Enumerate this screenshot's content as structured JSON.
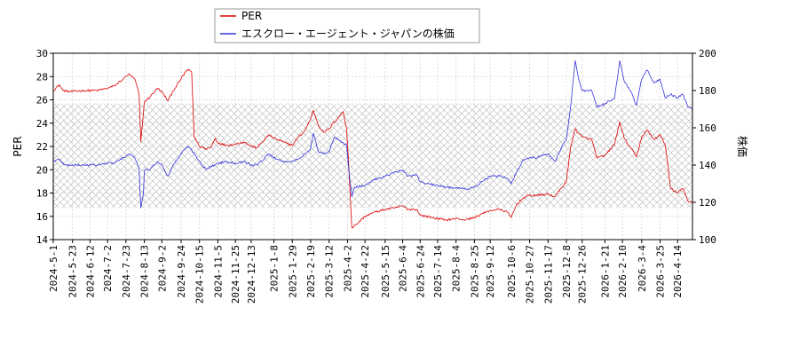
{
  "chart_data": {
    "type": "line",
    "title": "",
    "xlabel": "",
    "ylabel_left": "PER",
    "ylabel_right": "株価",
    "ylim_left": [
      14,
      30
    ],
    "ylim_right": [
      100,
      200
    ],
    "yticks_left": [
      14,
      16,
      18,
      20,
      22,
      24,
      26,
      28,
      30
    ],
    "yticks_right": [
      100,
      120,
      140,
      160,
      180,
      200
    ],
    "xlim": [
      "2024-05-01",
      "2026-05-01"
    ],
    "xtick_labels": [
      "2024-5-1",
      "2024-5-23",
      "2024-6-12",
      "2024-7-2",
      "2024-7-23",
      "2024-8-13",
      "2024-9-2",
      "2024-9-24",
      "2024-10-15",
      "2024-11-5",
      "2024-11-25",
      "2024-12-13",
      "2025-1-8",
      "2025-1-29",
      "2025-2-19",
      "2025-3-12",
      "2025-4-2",
      "2025-4-22",
      "2025-5-15",
      "2025-6-4",
      "2025-6-24",
      "2025-7-14",
      "2025-8-4",
      "2025-8-25",
      "2025-9-12",
      "2025-10-6",
      "2025-10-27",
      "2025-11-17",
      "2025-12-8",
      "2025-12-26",
      "2026-1-21",
      "2026-2-10",
      "2026-3-4",
      "2026-3-25",
      "2026-4-14"
    ],
    "xtick_dates": [
      "2024-05-01",
      "2024-05-23",
      "2024-06-12",
      "2024-07-02",
      "2024-07-23",
      "2024-08-13",
      "2024-09-02",
      "2024-09-24",
      "2024-10-15",
      "2024-11-05",
      "2024-11-25",
      "2024-12-13",
      "2025-01-08",
      "2025-01-29",
      "2025-02-19",
      "2025-03-12",
      "2025-04-02",
      "2025-04-22",
      "2025-05-15",
      "2025-06-04",
      "2025-06-24",
      "2025-07-14",
      "2025-08-04",
      "2025-08-25",
      "2025-09-12",
      "2025-10-06",
      "2025-10-27",
      "2025-11-17",
      "2025-12-08",
      "2025-12-26",
      "2026-01-21",
      "2026-02-10",
      "2026-03-04",
      "2026-03-25",
      "2026-04-14"
    ],
    "legend_position": "top-left",
    "shaded_band_right_axis": [
      117,
      173
    ],
    "series": [
      {
        "name": "PER",
        "axis": "left",
        "color": "#dd0000",
        "points": [
          [
            "2024-05-01",
            26.8
          ],
          [
            "2024-05-08",
            27.3
          ],
          [
            "2024-05-12",
            26.8
          ],
          [
            "2024-05-20",
            26.7
          ],
          [
            "2024-06-05",
            26.8
          ],
          [
            "2024-06-20",
            26.8
          ],
          [
            "2024-07-02",
            27.0
          ],
          [
            "2024-07-10",
            27.2
          ],
          [
            "2024-07-20",
            27.8
          ],
          [
            "2024-07-26",
            28.2
          ],
          [
            "2024-08-02",
            27.8
          ],
          [
            "2024-08-07",
            26.5
          ],
          [
            "2024-08-09",
            22.4
          ],
          [
            "2024-08-13",
            25.8
          ],
          [
            "2024-08-20",
            26.3
          ],
          [
            "2024-08-28",
            27.0
          ],
          [
            "2024-09-03",
            26.6
          ],
          [
            "2024-09-09",
            25.9
          ],
          [
            "2024-09-15",
            26.8
          ],
          [
            "2024-09-24",
            27.8
          ],
          [
            "2024-10-01",
            28.6
          ],
          [
            "2024-10-06",
            28.4
          ],
          [
            "2024-10-09",
            22.8
          ],
          [
            "2024-10-15",
            22.0
          ],
          [
            "2024-10-22",
            21.8
          ],
          [
            "2024-10-28",
            21.9
          ],
          [
            "2024-11-02",
            22.7
          ],
          [
            "2024-11-05",
            22.3
          ],
          [
            "2024-11-15",
            22.1
          ],
          [
            "2024-11-25",
            22.2
          ],
          [
            "2024-12-05",
            22.4
          ],
          [
            "2024-12-13",
            22.0
          ],
          [
            "2024-12-20",
            21.9
          ],
          [
            "2025-01-02",
            23.0
          ],
          [
            "2025-01-08",
            22.7
          ],
          [
            "2025-01-18",
            22.4
          ],
          [
            "2025-01-29",
            22.1
          ],
          [
            "2025-02-05",
            22.8
          ],
          [
            "2025-02-12",
            23.3
          ],
          [
            "2025-02-19",
            24.4
          ],
          [
            "2025-02-22",
            25.1
          ],
          [
            "2025-02-28",
            23.8
          ],
          [
            "2025-03-06",
            23.2
          ],
          [
            "2025-03-12",
            23.5
          ],
          [
            "2025-03-18",
            24.1
          ],
          [
            "2025-03-24",
            24.6
          ],
          [
            "2025-03-28",
            25.0
          ],
          [
            "2025-04-01",
            23.5
          ],
          [
            "2025-04-03",
            21.0
          ],
          [
            "2025-04-07",
            15.0
          ],
          [
            "2025-04-12",
            15.3
          ],
          [
            "2025-04-22",
            16.0
          ],
          [
            "2025-05-01",
            16.3
          ],
          [
            "2025-05-15",
            16.6
          ],
          [
            "2025-05-25",
            16.7
          ],
          [
            "2025-06-04",
            16.9
          ],
          [
            "2025-06-10",
            16.6
          ],
          [
            "2025-06-20",
            16.6
          ],
          [
            "2025-06-24",
            16.1
          ],
          [
            "2025-07-01",
            16.0
          ],
          [
            "2025-07-14",
            15.8
          ],
          [
            "2025-07-24",
            15.7
          ],
          [
            "2025-08-04",
            15.8
          ],
          [
            "2025-08-15",
            15.7
          ],
          [
            "2025-08-25",
            15.9
          ],
          [
            "2025-09-02",
            16.2
          ],
          [
            "2025-09-12",
            16.5
          ],
          [
            "2025-09-22",
            16.6
          ],
          [
            "2025-10-01",
            16.4
          ],
          [
            "2025-10-06",
            15.9
          ],
          [
            "2025-10-12",
            17.0
          ],
          [
            "2025-10-20",
            17.6
          ],
          [
            "2025-10-27",
            17.8
          ],
          [
            "2025-11-05",
            17.8
          ],
          [
            "2025-11-17",
            17.9
          ],
          [
            "2025-11-25",
            17.7
          ],
          [
            "2025-12-02",
            18.4
          ],
          [
            "2025-12-08",
            19.0
          ],
          [
            "2025-12-13",
            22.0
          ],
          [
            "2025-12-18",
            23.5
          ],
          [
            "2025-12-26",
            22.8
          ],
          [
            "2026-01-06",
            22.6
          ],
          [
            "2026-01-12",
            21.0
          ],
          [
            "2026-01-21",
            21.2
          ],
          [
            "2026-02-01",
            22.2
          ],
          [
            "2026-02-07",
            24.1
          ],
          [
            "2026-02-12",
            22.7
          ],
          [
            "2026-02-20",
            21.8
          ],
          [
            "2026-02-26",
            21.1
          ],
          [
            "2026-03-04",
            22.8
          ],
          [
            "2026-03-10",
            23.4
          ],
          [
            "2026-03-18",
            22.6
          ],
          [
            "2026-03-25",
            23.0
          ],
          [
            "2026-03-31",
            22.1
          ],
          [
            "2026-04-06",
            18.4
          ],
          [
            "2026-04-14",
            18.0
          ],
          [
            "2026-04-20",
            18.4
          ],
          [
            "2026-04-26",
            17.3
          ],
          [
            "2026-05-01",
            17.2
          ]
        ]
      },
      {
        "name": "エスクロー・エージェント・ジャパンの株価",
        "axis": "right",
        "color": "#3333dd",
        "points": [
          [
            "2024-05-01",
            142
          ],
          [
            "2024-05-08",
            143
          ],
          [
            "2024-05-14",
            140
          ],
          [
            "2024-05-23",
            140
          ],
          [
            "2024-06-05",
            140
          ],
          [
            "2024-06-20",
            140
          ],
          [
            "2024-07-02",
            141
          ],
          [
            "2024-07-10",
            141
          ],
          [
            "2024-07-20",
            144
          ],
          [
            "2024-07-26",
            146
          ],
          [
            "2024-08-02",
            144
          ],
          [
            "2024-08-07",
            138
          ],
          [
            "2024-08-09",
            117
          ],
          [
            "2024-08-12",
            125
          ],
          [
            "2024-08-13",
            137
          ],
          [
            "2024-08-20",
            138
          ],
          [
            "2024-08-28",
            142
          ],
          [
            "2024-09-02",
            140
          ],
          [
            "2024-09-09",
            134
          ],
          [
            "2024-09-15",
            140
          ],
          [
            "2024-09-24",
            146
          ],
          [
            "2024-10-01",
            150
          ],
          [
            "2024-10-06",
            148
          ],
          [
            "2024-10-15",
            142
          ],
          [
            "2024-10-22",
            138
          ],
          [
            "2024-10-28",
            139
          ],
          [
            "2024-11-05",
            141
          ],
          [
            "2024-11-15",
            142
          ],
          [
            "2024-11-25",
            141
          ],
          [
            "2024-12-05",
            142
          ],
          [
            "2024-12-13",
            140
          ],
          [
            "2024-12-20",
            140
          ],
          [
            "2025-01-02",
            146
          ],
          [
            "2025-01-08",
            144
          ],
          [
            "2025-01-18",
            142
          ],
          [
            "2025-01-29",
            142
          ],
          [
            "2025-02-05",
            143
          ],
          [
            "2025-02-12",
            146
          ],
          [
            "2025-02-19",
            149
          ],
          [
            "2025-02-22",
            157
          ],
          [
            "2025-02-28",
            147
          ],
          [
            "2025-03-06",
            146
          ],
          [
            "2025-03-12",
            147
          ],
          [
            "2025-03-18",
            155
          ],
          [
            "2025-03-24",
            153
          ],
          [
            "2025-03-28",
            152
          ],
          [
            "2025-04-01",
            151
          ],
          [
            "2025-04-03",
            140
          ],
          [
            "2025-04-07",
            123
          ],
          [
            "2025-04-10",
            128
          ],
          [
            "2025-04-22",
            129
          ],
          [
            "2025-05-01",
            132
          ],
          [
            "2025-05-15",
            134
          ],
          [
            "2025-05-25",
            136
          ],
          [
            "2025-06-04",
            137
          ],
          [
            "2025-06-10",
            134
          ],
          [
            "2025-06-20",
            135
          ],
          [
            "2025-06-24",
            131
          ],
          [
            "2025-07-01",
            130
          ],
          [
            "2025-07-14",
            129
          ],
          [
            "2025-07-24",
            128
          ],
          [
            "2025-08-04",
            128
          ],
          [
            "2025-08-15",
            127
          ],
          [
            "2025-08-25",
            128
          ],
          [
            "2025-09-02",
            131
          ],
          [
            "2025-09-12",
            134
          ],
          [
            "2025-09-22",
            134
          ],
          [
            "2025-10-01",
            133
          ],
          [
            "2025-10-06",
            130
          ],
          [
            "2025-10-12",
            136
          ],
          [
            "2025-10-20",
            143
          ],
          [
            "2025-10-27",
            144
          ],
          [
            "2025-11-05",
            144
          ],
          [
            "2025-11-17",
            146
          ],
          [
            "2025-11-25",
            142
          ],
          [
            "2025-12-02",
            149
          ],
          [
            "2025-12-08",
            154
          ],
          [
            "2025-12-13",
            172
          ],
          [
            "2025-12-18",
            196
          ],
          [
            "2025-12-22",
            186
          ],
          [
            "2025-12-26",
            180
          ],
          [
            "2026-01-06",
            180
          ],
          [
            "2026-01-12",
            171
          ],
          [
            "2026-01-21",
            173
          ],
          [
            "2026-02-01",
            176
          ],
          [
            "2026-02-07",
            196
          ],
          [
            "2026-02-12",
            185
          ],
          [
            "2026-02-20",
            179
          ],
          [
            "2026-02-26",
            172
          ],
          [
            "2026-03-04",
            186
          ],
          [
            "2026-03-10",
            191
          ],
          [
            "2026-03-18",
            184
          ],
          [
            "2026-03-25",
            186
          ],
          [
            "2026-03-31",
            176
          ],
          [
            "2026-04-06",
            178
          ],
          [
            "2026-04-14",
            176
          ],
          [
            "2026-04-20",
            178
          ],
          [
            "2026-04-26",
            171
          ],
          [
            "2026-05-01",
            170
          ]
        ]
      }
    ]
  }
}
